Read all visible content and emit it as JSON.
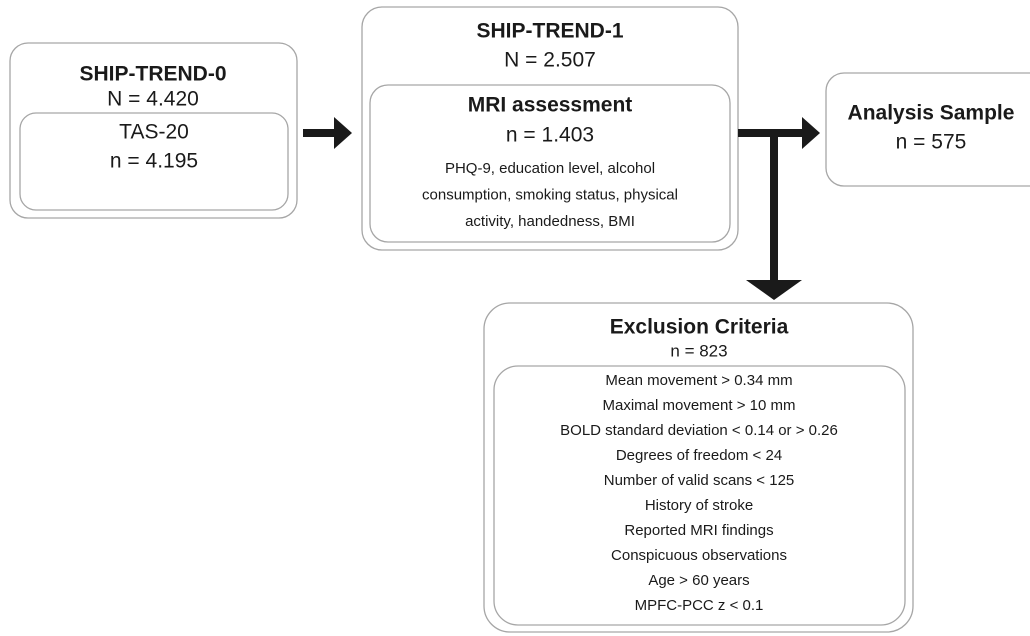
{
  "nodes": [
    {
      "title": "SHIP-TREND-0",
      "count": "N = 4.420",
      "inner": {
        "title": "TAS-20",
        "count": "n = 4.195",
        "lines": []
      }
    },
    {
      "title": "SHIP-TREND-1",
      "count": "N = 2.507",
      "inner": {
        "title": "MRI assessment",
        "count": "n = 1.403",
        "lines": [
          "PHQ-9, education level, alcohol",
          "consumption, smoking status, physical",
          "activity, handedness, BMI"
        ]
      }
    },
    {
      "title": "Analysis Sample",
      "count": "n = 575"
    },
    {
      "title": "Exclusion Criteria",
      "count": "n = 823",
      "inner": {
        "lines": [
          "Mean movement > 0.34 mm",
          "Maximal movement > 10 mm",
          "BOLD standard deviation < 0.14 or > 0.26",
          "Degrees of freedom < 24",
          "Number of valid scans < 125",
          "History of stroke",
          "Reported MRI findings",
          "Conspicuous observations",
          "Age > 60 years",
          "MPFC-PCC z < 0.1"
        ]
      }
    }
  ]
}
